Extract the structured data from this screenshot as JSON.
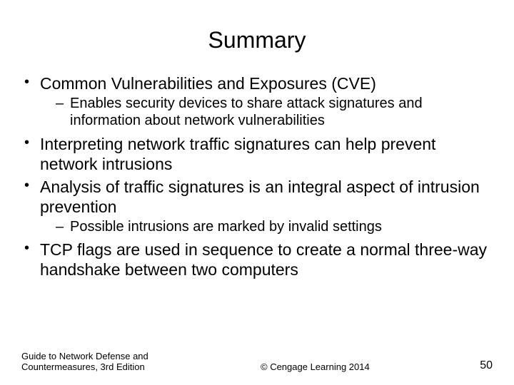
{
  "slide": {
    "title": "Summary",
    "bullets": [
      {
        "text": "Common Vulnerabilities and Exposures (CVE)",
        "sub": [
          "Enables security devices to share attack signatures and information about network vulnerabilities"
        ]
      },
      {
        "text": "Interpreting network traffic signatures can help prevent network intrusions",
        "sub": []
      },
      {
        "text": "Analysis of traffic signatures is an integral aspect of intrusion prevention",
        "sub": [
          "Possible intrusions are marked by invalid settings"
        ]
      },
      {
        "text": "TCP flags are used in sequence to create a normal three-way handshake between two computers",
        "sub": []
      }
    ],
    "footer": {
      "left": "Guide to Network Defense and Countermeasures, 3rd Edition",
      "center": "© Cengage Learning  2014",
      "page": "50"
    },
    "style": {
      "background_color": "#ffffff",
      "text_color": "#000000",
      "title_fontsize": 32,
      "level1_fontsize": 23,
      "level2_fontsize": 20,
      "footer_fontsize": 13,
      "page_fontsize": 16,
      "font_family": "Arial"
    }
  }
}
